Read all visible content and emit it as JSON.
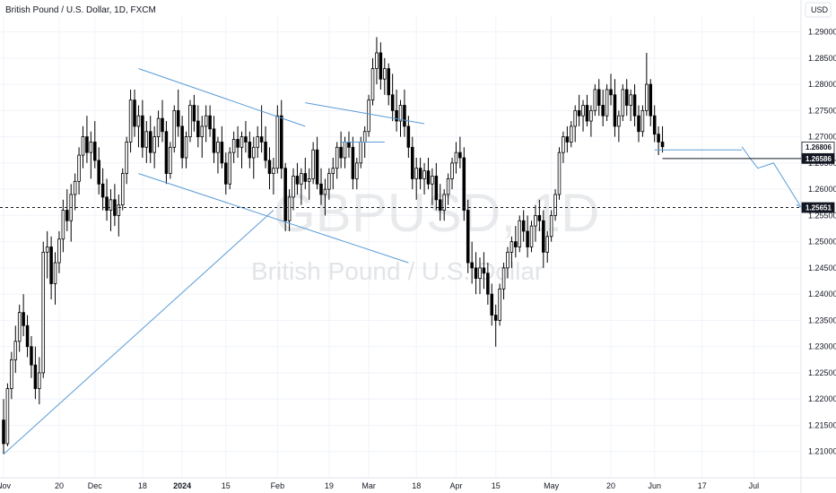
{
  "header": {
    "title": "British Pound / U.S. Dollar, 1D, FXCM",
    "currency_label": "USD"
  },
  "watermark": {
    "symbol": "GBPUSD, 1D",
    "name": "British Pound / U.S. Dollar"
  },
  "colors": {
    "candle": "#000000",
    "trendline": "#5b9bd5",
    "grid": "#f0f3fa",
    "axis_text": "#131722"
  },
  "chart_data": {
    "type": "candlestick",
    "title": "British Pound / U.S. Dollar, 1D, FXCM",
    "y_axis": {
      "label": "USD",
      "range": [
        1.205,
        1.293
      ],
      "ticks": [
        "1.21000",
        "1.21500",
        "1.22000",
        "1.22500",
        "1.23000",
        "1.23500",
        "1.24000",
        "1.24500",
        "1.25000",
        "1.25500",
        "1.26000",
        "1.26500",
        "1.27000",
        "1.27500",
        "1.28000",
        "1.28500",
        "1.29000"
      ]
    },
    "x_axis": {
      "ticks": [
        {
          "label": "Nov",
          "day": 0
        },
        {
          "label": "20",
          "day": 14
        },
        {
          "label": "Dec",
          "day": 23
        },
        {
          "label": "18",
          "day": 35
        },
        {
          "label": "2024",
          "day": 45
        },
        {
          "label": "15",
          "day": 56
        },
        {
          "label": "Feb",
          "day": 69
        },
        {
          "label": "19",
          "day": 82
        },
        {
          "label": "Mar",
          "day": 92
        },
        {
          "label": "18",
          "day": 104
        },
        {
          "label": "Apr",
          "day": 114
        },
        {
          "label": "15",
          "day": 124
        },
        {
          "label": "May",
          "day": 138
        },
        {
          "label": "20",
          "day": 153
        },
        {
          "label": "Jun",
          "day": 164
        },
        {
          "label": "17",
          "day": 176
        },
        {
          "label": "Jul",
          "day": 189
        }
      ],
      "total_days": 200
    },
    "candles": [
      [
        1.216,
        1.22,
        1.2095,
        1.2115
      ],
      [
        1.2115,
        1.223,
        1.211,
        1.222
      ],
      [
        1.222,
        1.229,
        1.22,
        1.2275
      ],
      [
        1.2275,
        1.234,
        1.225,
        1.231
      ],
      [
        1.231,
        1.238,
        1.229,
        1.2365
      ],
      [
        1.2365,
        1.24,
        1.232,
        1.234
      ],
      [
        1.234,
        1.236,
        1.228,
        1.23
      ],
      [
        1.23,
        1.232,
        1.224,
        1.2265
      ],
      [
        1.2265,
        1.23,
        1.22,
        1.222
      ],
      [
        1.222,
        1.228,
        1.219,
        1.225
      ],
      [
        1.225,
        1.25,
        1.224,
        1.248
      ],
      [
        1.248,
        1.252,
        1.243,
        1.249
      ],
      [
        1.249,
        1.251,
        1.239,
        1.242
      ],
      [
        1.242,
        1.248,
        1.238,
        1.246
      ],
      [
        1.246,
        1.252,
        1.244,
        1.2505
      ],
      [
        1.2505,
        1.258,
        1.248,
        1.256
      ],
      [
        1.256,
        1.26,
        1.252,
        1.254
      ],
      [
        1.254,
        1.261,
        1.25,
        1.259
      ],
      [
        1.259,
        1.263,
        1.256,
        1.2615
      ],
      [
        1.2615,
        1.268,
        1.259,
        1.2665
      ],
      [
        1.2665,
        1.272,
        1.264,
        1.27
      ],
      [
        1.27,
        1.274,
        1.265,
        1.267
      ],
      [
        1.267,
        1.271,
        1.262,
        1.269
      ],
      [
        1.269,
        1.273,
        1.264,
        1.2655
      ],
      [
        1.2655,
        1.268,
        1.259,
        1.261
      ],
      [
        1.261,
        1.264,
        1.256,
        1.2585
      ],
      [
        1.2585,
        1.262,
        1.254,
        1.256
      ],
      [
        1.256,
        1.26,
        1.252,
        1.258
      ],
      [
        1.258,
        1.261,
        1.253,
        1.255
      ],
      [
        1.255,
        1.259,
        1.251,
        1.257
      ],
      [
        1.257,
        1.264,
        1.256,
        1.263
      ],
      [
        1.263,
        1.27,
        1.261,
        1.269
      ],
      [
        1.269,
        1.279,
        1.267,
        1.277
      ],
      [
        1.277,
        1.279,
        1.27,
        1.272
      ],
      [
        1.272,
        1.276,
        1.268,
        1.274
      ],
      [
        1.274,
        1.277,
        1.266,
        1.268
      ],
      [
        1.268,
        1.273,
        1.265,
        1.271
      ],
      [
        1.271,
        1.274,
        1.265,
        1.267
      ],
      [
        1.267,
        1.272,
        1.264,
        1.27
      ],
      [
        1.27,
        1.275,
        1.268,
        1.2735
      ],
      [
        1.2735,
        1.277,
        1.269,
        1.271
      ],
      [
        1.271,
        1.273,
        1.261,
        1.263
      ],
      [
        1.263,
        1.269,
        1.262,
        1.268
      ],
      [
        1.268,
        1.276,
        1.267,
        1.275
      ],
      [
        1.275,
        1.279,
        1.27,
        1.272
      ],
      [
        1.272,
        1.274,
        1.264,
        1.266
      ],
      [
        1.266,
        1.271,
        1.264,
        1.27
      ],
      [
        1.27,
        1.277,
        1.269,
        1.276
      ],
      [
        1.276,
        1.278,
        1.271,
        1.273
      ],
      [
        1.273,
        1.276,
        1.268,
        1.27
      ],
      [
        1.27,
        1.274,
        1.266,
        1.272
      ],
      [
        1.272,
        1.276,
        1.269,
        1.274
      ],
      [
        1.274,
        1.276,
        1.27,
        1.2715
      ],
      [
        1.2715,
        1.274,
        1.265,
        1.267
      ],
      [
        1.267,
        1.27,
        1.263,
        1.269
      ],
      [
        1.269,
        1.272,
        1.264,
        1.265
      ],
      [
        1.265,
        1.267,
        1.259,
        1.261
      ],
      [
        1.261,
        1.268,
        1.26,
        1.267
      ],
      [
        1.267,
        1.271,
        1.265,
        1.2695
      ],
      [
        1.2695,
        1.272,
        1.266,
        1.268
      ],
      [
        1.268,
        1.271,
        1.264,
        1.27
      ],
      [
        1.27,
        1.273,
        1.267,
        1.269
      ],
      [
        1.269,
        1.271,
        1.264,
        1.266
      ],
      [
        1.266,
        1.27,
        1.262,
        1.268
      ],
      [
        1.268,
        1.272,
        1.266,
        1.27
      ],
      [
        1.27,
        1.276,
        1.267,
        1.269
      ],
      [
        1.269,
        1.272,
        1.264,
        1.2655
      ],
      [
        1.2655,
        1.268,
        1.26,
        1.263
      ],
      [
        1.263,
        1.266,
        1.259,
        1.264
      ],
      [
        1.264,
        1.276,
        1.263,
        1.274
      ],
      [
        1.274,
        1.277,
        1.262,
        1.264
      ],
      [
        1.264,
        1.265,
        1.252,
        1.254
      ],
      [
        1.254,
        1.26,
        1.252,
        1.2585
      ],
      [
        1.2585,
        1.264,
        1.256,
        1.2625
      ],
      [
        1.2625,
        1.265,
        1.259,
        1.261
      ],
      [
        1.261,
        1.264,
        1.257,
        1.263
      ],
      [
        1.263,
        1.266,
        1.26,
        1.2615
      ],
      [
        1.2615,
        1.264,
        1.258,
        1.262
      ],
      [
        1.262,
        1.269,
        1.261,
        1.2675
      ],
      [
        1.2675,
        1.27,
        1.26,
        1.261
      ],
      [
        1.261,
        1.264,
        1.257,
        1.259
      ],
      [
        1.259,
        1.262,
        1.255,
        1.26
      ],
      [
        1.26,
        1.264,
        1.258,
        1.263
      ],
      [
        1.263,
        1.266,
        1.26,
        1.264
      ],
      [
        1.264,
        1.269,
        1.262,
        1.268
      ],
      [
        1.268,
        1.271,
        1.264,
        1.266
      ],
      [
        1.266,
        1.27,
        1.264,
        1.269
      ],
      [
        1.269,
        1.271,
        1.266,
        1.268
      ],
      [
        1.268,
        1.27,
        1.26,
        1.262
      ],
      [
        1.262,
        1.266,
        1.26,
        1.265
      ],
      [
        1.265,
        1.27,
        1.264,
        1.269
      ],
      [
        1.269,
        1.272,
        1.266,
        1.271
      ],
      [
        1.271,
        1.278,
        1.27,
        1.277
      ],
      [
        1.277,
        1.285,
        1.276,
        1.283
      ],
      [
        1.283,
        1.289,
        1.28,
        1.286
      ],
      [
        1.286,
        1.288,
        1.279,
        1.281
      ],
      [
        1.281,
        1.285,
        1.278,
        1.283
      ],
      [
        1.283,
        1.284,
        1.276,
        1.278
      ],
      [
        1.278,
        1.282,
        1.273,
        1.275
      ],
      [
        1.275,
        1.279,
        1.271,
        1.273
      ],
      [
        1.273,
        1.277,
        1.27,
        1.276
      ],
      [
        1.276,
        1.279,
        1.27,
        1.272
      ],
      [
        1.272,
        1.274,
        1.266,
        1.268
      ],
      [
        1.268,
        1.27,
        1.26,
        1.262
      ],
      [
        1.262,
        1.266,
        1.258,
        1.264
      ],
      [
        1.264,
        1.266,
        1.26,
        1.262
      ],
      [
        1.262,
        1.265,
        1.259,
        1.2635
      ],
      [
        1.2635,
        1.266,
        1.26,
        1.261
      ],
      [
        1.261,
        1.264,
        1.257,
        1.2625
      ],
      [
        1.2625,
        1.265,
        1.256,
        1.258
      ],
      [
        1.258,
        1.261,
        1.254,
        1.256
      ],
      [
        1.256,
        1.26,
        1.254,
        1.259
      ],
      [
        1.259,
        1.263,
        1.257,
        1.262
      ],
      [
        1.262,
        1.266,
        1.26,
        1.265
      ],
      [
        1.265,
        1.269,
        1.263,
        1.267
      ],
      [
        1.267,
        1.27,
        1.264,
        1.266
      ],
      [
        1.266,
        1.268,
        1.254,
        1.256
      ],
      [
        1.256,
        1.258,
        1.244,
        1.246
      ],
      [
        1.246,
        1.25,
        1.242,
        1.245
      ],
      [
        1.245,
        1.248,
        1.24,
        1.243
      ],
      [
        1.243,
        1.247,
        1.24,
        1.245
      ],
      [
        1.245,
        1.248,
        1.241,
        1.244
      ],
      [
        1.244,
        1.246,
        1.238,
        1.24
      ],
      [
        1.24,
        1.242,
        1.234,
        1.236
      ],
      [
        1.236,
        1.238,
        1.23,
        1.235
      ],
      [
        1.235,
        1.242,
        1.234,
        1.241
      ],
      [
        1.241,
        1.246,
        1.239,
        1.245
      ],
      [
        1.245,
        1.249,
        1.243,
        1.248
      ],
      [
        1.248,
        1.251,
        1.245,
        1.25
      ],
      [
        1.25,
        1.253,
        1.247,
        1.249
      ],
      [
        1.249,
        1.255,
        1.248,
        1.254
      ],
      [
        1.254,
        1.256,
        1.25,
        1.252
      ],
      [
        1.252,
        1.255,
        1.247,
        1.249
      ],
      [
        1.249,
        1.254,
        1.248,
        1.253
      ],
      [
        1.253,
        1.257,
        1.25,
        1.255
      ],
      [
        1.255,
        1.258,
        1.252,
        1.254
      ],
      [
        1.254,
        1.256,
        1.245,
        1.248
      ],
      [
        1.248,
        1.252,
        1.246,
        1.251
      ],
      [
        1.251,
        1.256,
        1.25,
        1.255
      ],
      [
        1.255,
        1.26,
        1.254,
        1.259
      ],
      [
        1.259,
        1.268,
        1.258,
        1.267
      ],
      [
        1.267,
        1.271,
        1.265,
        1.27
      ],
      [
        1.27,
        1.272,
        1.267,
        1.269
      ],
      [
        1.269,
        1.273,
        1.268,
        1.272
      ],
      [
        1.272,
        1.276,
        1.269,
        1.275
      ],
      [
        1.275,
        1.278,
        1.272,
        1.274
      ],
      [
        1.274,
        1.277,
        1.271,
        1.276
      ],
      [
        1.276,
        1.278,
        1.272,
        1.273
      ],
      [
        1.273,
        1.276,
        1.27,
        1.275
      ],
      [
        1.275,
        1.28,
        1.274,
        1.279
      ],
      [
        1.279,
        1.281,
        1.274,
        1.276
      ],
      [
        1.276,
        1.279,
        1.272,
        1.274
      ],
      [
        1.274,
        1.28,
        1.273,
        1.279
      ],
      [
        1.279,
        1.282,
        1.276,
        1.278
      ],
      [
        1.278,
        1.281,
        1.27,
        1.272
      ],
      [
        1.272,
        1.275,
        1.269,
        1.274
      ],
      [
        1.274,
        1.28,
        1.273,
        1.279
      ],
      [
        1.279,
        1.281,
        1.274,
        1.276
      ],
      [
        1.276,
        1.279,
        1.273,
        1.278
      ],
      [
        1.278,
        1.28,
        1.272,
        1.274
      ],
      [
        1.274,
        1.276,
        1.269,
        1.271
      ],
      [
        1.271,
        1.276,
        1.27,
        1.275
      ],
      [
        1.275,
        1.286,
        1.274,
        1.28
      ],
      [
        1.28,
        1.281,
        1.272,
        1.274
      ],
      [
        1.274,
        1.276,
        1.269,
        1.2705
      ],
      [
        1.2705,
        1.272,
        1.2665,
        1.269
      ],
      [
        1.269,
        1.272,
        1.267,
        1.2681
      ]
    ],
    "price_tags": [
      {
        "label": "1.26806",
        "price": 1.26806,
        "style": "current",
        "sub": "12:28:55"
      },
      {
        "label": "1.26586",
        "price": 1.26586,
        "style": "level"
      },
      {
        "label": "1.25651",
        "price": 1.25651,
        "style": "dashed"
      }
    ],
    "drawings": {
      "upper_channel": [
        [
          34,
          1.283
        ],
        [
          76,
          1.272
        ]
      ],
      "upper_channel_2": [
        [
          76,
          1.2765
        ],
        [
          106,
          1.2725
        ]
      ],
      "lower_channel": [
        [
          34,
          1.263
        ],
        [
          102,
          1.246
        ]
      ],
      "rising_trend": [
        [
          0,
          1.2095
        ],
        [
          68,
          1.256
        ]
      ],
      "box_top": [
        [
          85,
          1.269
        ],
        [
          96,
          1.269
        ]
      ],
      "support_line": [
        [
          164,
          1.2675
        ],
        [
          186,
          1.2675
        ]
      ],
      "projection": [
        [
          186,
          1.2681
        ],
        [
          188,
          1.266
        ],
        [
          190,
          1.264
        ],
        [
          194,
          1.265
        ],
        [
          201,
          1.2565
        ]
      ]
    }
  }
}
